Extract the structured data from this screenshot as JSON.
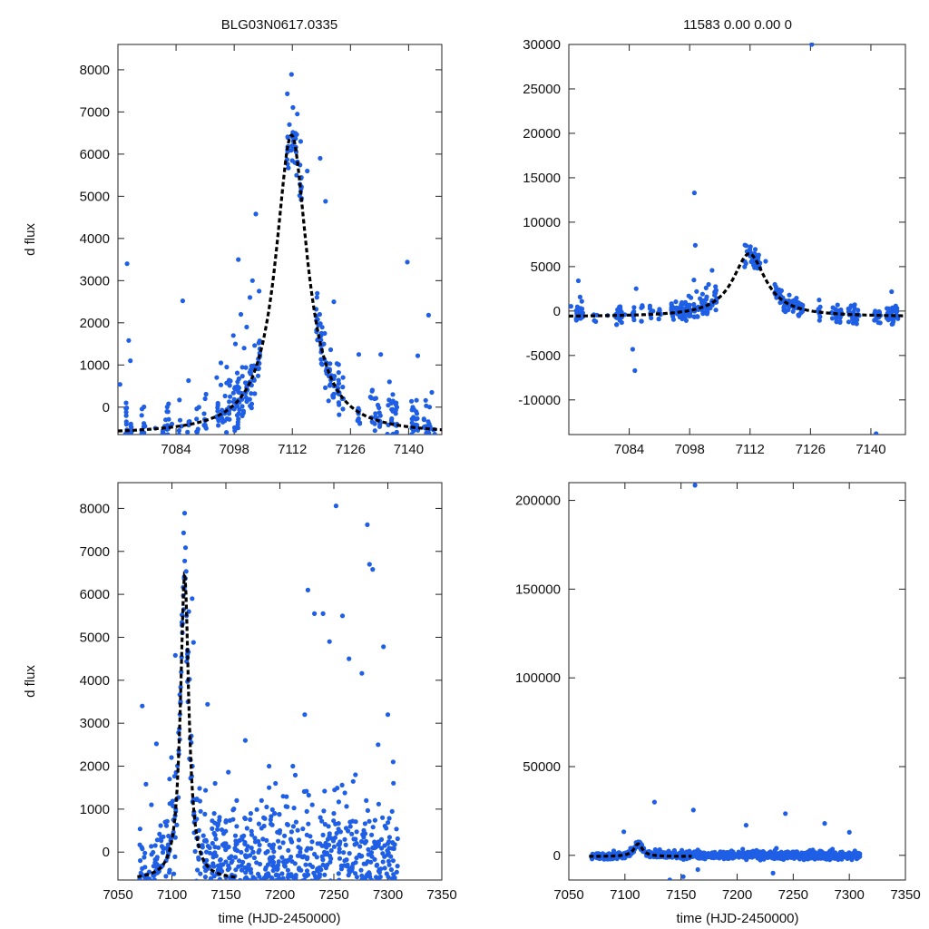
{
  "figure": {
    "title_left": "BLG03N0617.0335",
    "title_right": "11583  0.00  0.00  0",
    "ylabel": "d flux",
    "xlabel": "time (HJD-2450000)",
    "point_color": "#1f5fe6",
    "model_color": "#000000"
  },
  "model": {
    "peak_time": 7111.8,
    "peak_flux": 6450,
    "tau": 4.6,
    "baseline": -650
  },
  "chart_data": [
    {
      "id": "top-left",
      "type": "scatter",
      "title": "BLG03N0617.0335",
      "xlabel": "",
      "ylabel": "d flux",
      "xlim": [
        7070,
        7148
      ],
      "ylim": [
        -650,
        8600
      ],
      "xticks": [
        7084,
        7098,
        7112,
        7126,
        7140
      ],
      "yticks": [
        0,
        1000,
        2000,
        3000,
        4000,
        5000,
        6000,
        7000,
        8000
      ],
      "series": [
        {
          "name": "photometry",
          "x": [
            7070.5,
            7072.2,
            7072.6,
            7073.0,
            7076.5,
            7079.0,
            7081.5,
            7083.0,
            7085.6,
            7087.0,
            7089.5,
            7091.0,
            7093.8,
            7094.8,
            7096.2,
            7097.0,
            7097.8,
            7098.3,
            7099.0,
            7099.6,
            7100.4,
            7101.0,
            7101.8,
            7102.4,
            7103.2,
            7104.0,
            7110.8,
            7111.3,
            7112.0,
            7112.6,
            7113.2,
            7114.0,
            7115.6,
            7118.0,
            7118.6,
            7119.0,
            7119.6,
            7120.2,
            7120.8,
            7121.4,
            7122.0,
            7123.0,
            7124.0,
            7128.0,
            7131.2,
            7131.8,
            7132.6,
            7133.2,
            7135.4,
            7136.2,
            7137.0,
            7141.0,
            7142.0,
            7144.8,
            7145.6
          ],
          "y": [
            540,
            3400,
            1580,
            1100,
            -450,
            -500,
            -300,
            -400,
            2520,
            630,
            0,
            200,
            700,
            1050,
            950,
            250,
            1700,
            1500,
            3500,
            2200,
            1400,
            1900,
            2600,
            3000,
            4580,
            2750,
            7430,
            6700,
            6200,
            5800,
            6950,
            6300,
            5600,
            2700,
            2200,
            1750,
            1500,
            1050,
            900,
            750,
            500,
            330,
            200,
            1250,
            380,
            200,
            50,
            -200,
            600,
            300,
            100,
            0,
            -150,
            2180,
            350
          ]
        },
        {
          "name": "outliers",
          "x": [
            7111.8,
            7118.7,
            7120.0,
            7139.7,
            7133.3,
            7122.0,
            7142.2
          ],
          "y": [
            7890,
            5900,
            4880,
            3440,
            1250,
            2500,
            1220
          ]
        }
      ]
    },
    {
      "id": "top-right",
      "type": "scatter",
      "title": "11583  0.00  0.00  0",
      "xlabel": "",
      "ylabel": "",
      "xlim": [
        7070,
        7148
      ],
      "ylim": [
        -13900,
        30000
      ],
      "xticks": [
        7084,
        7098,
        7112,
        7126,
        7140
      ],
      "yticks": [
        -10000,
        -5000,
        0,
        5000,
        10000,
        15000,
        20000,
        25000,
        30000
      ],
      "series": [
        {
          "name": "photometry",
          "x": [
            7070.5,
            7072.2,
            7072.6,
            7073.0,
            7076.5,
            7079.0,
            7081.5,
            7083.0,
            7085.6,
            7087.0,
            7089.5,
            7091.0,
            7093.8,
            7094.8,
            7096.2,
            7097.0,
            7097.8,
            7098.3,
            7099.0,
            7099.6,
            7100.4,
            7101.0,
            7101.8,
            7102.4,
            7103.2,
            7104.0,
            7110.8,
            7111.3,
            7112.0,
            7112.6,
            7113.2,
            7114.0,
            7115.6,
            7118.0,
            7118.6,
            7119.0,
            7119.6,
            7120.2,
            7120.8,
            7121.4,
            7122.0,
            7123.0,
            7124.0,
            7128.0,
            7131.2,
            7131.8,
            7132.6,
            7133.2,
            7135.4,
            7136.2,
            7137.0,
            7141.0,
            7142.0,
            7144.8,
            7145.6,
            7084.8,
            7085.3,
            7099.1,
            7099.3,
            7126.3,
            7141.2
          ],
          "y": [
            540,
            3400,
            1580,
            1100,
            -450,
            -500,
            -300,
            -400,
            2520,
            630,
            0,
            200,
            700,
            1050,
            950,
            250,
            1700,
            1500,
            3500,
            2200,
            1400,
            1900,
            2600,
            3000,
            4580,
            2750,
            7430,
            6700,
            6200,
            5800,
            6950,
            6300,
            5600,
            2700,
            2200,
            1750,
            1500,
            1050,
            900,
            750,
            500,
            330,
            200,
            1250,
            380,
            200,
            50,
            -200,
            600,
            300,
            100,
            0,
            -150,
            2180,
            350,
            -4300,
            -6700,
            13300,
            7400,
            30000,
            -13800
          ]
        }
      ]
    },
    {
      "id": "bottom-left",
      "type": "scatter",
      "title": "",
      "xlabel": "time (HJD-2450000)",
      "ylabel": "d flux",
      "xlim": [
        7050,
        7350
      ],
      "ylim": [
        -650,
        8600
      ],
      "xticks": [
        7050,
        7100,
        7150,
        7200,
        7250,
        7300,
        7350
      ],
      "yticks": [
        0,
        1000,
        2000,
        3000,
        4000,
        5000,
        6000,
        7000,
        8000
      ],
      "series": [
        {
          "name": "photometry",
          "x": [
            7070.5,
            7072.5,
            7076.0,
            7081.0,
            7085.6,
            7093.8,
            7097.8,
            7099.6,
            7103.2,
            7110.8,
            7111.8,
            7115.6,
            7118.7,
            7120.0,
            7133.0,
            7140.0,
            7150.0,
            7160.0,
            7168.0,
            7183.0,
            7190.0,
            7196.0,
            7203.0,
            7212.0,
            7223.0,
            7226.0,
            7232.0,
            7240.0,
            7246.0,
            7252.0,
            7258.0,
            7264.0,
            7270.0,
            7276.0,
            7281.0,
            7283.0,
            7286.0,
            7291.0,
            7296.0,
            7300.0,
            7305.0
          ],
          "y": [
            540,
            3400,
            1580,
            1100,
            2520,
            700,
            1700,
            2200,
            4580,
            7430,
            7890,
            5600,
            5900,
            4880,
            3440,
            1600,
            700,
            1200,
            2600,
            1200,
            2000,
            1600,
            1300,
            2000,
            3200,
            6100,
            5550,
            5550,
            4900,
            8060,
            5500,
            4500,
            1800,
            4160,
            7620,
            6700,
            6580,
            2500,
            4780,
            3200,
            2100
          ]
        },
        {
          "name": "dense-noise",
          "x": [
            7130,
            7135,
            7140,
            7145,
            7150,
            7155,
            7160,
            7165,
            7170,
            7175,
            7180,
            7185,
            7190,
            7195,
            7200,
            7205,
            7210,
            7215,
            7220,
            7225,
            7230,
            7235,
            7240,
            7245,
            7250,
            7255,
            7260,
            7265,
            7270,
            7275,
            7280,
            7285,
            7290,
            7295,
            7300,
            7305
          ],
          "y": [
            -200,
            100,
            400,
            -300,
            200,
            -100,
            600,
            300,
            -400,
            0,
            250,
            800,
            1500,
            900,
            500,
            -200,
            300,
            700,
            -100,
            400,
            1100,
            200,
            -300,
            600,
            900,
            0,
            -200,
            700,
            300,
            -100,
            1200,
            400,
            -300,
            800,
            200,
            -200
          ]
        }
      ]
    },
    {
      "id": "bottom-right",
      "type": "scatter",
      "title": "",
      "xlabel": "time (HJD-2450000)",
      "ylabel": "",
      "xlim": [
        7050,
        7350
      ],
      "ylim": [
        -13900,
        210000
      ],
      "xticks": [
        7050,
        7100,
        7150,
        7200,
        7250,
        7300,
        7350
      ],
      "yticks": [
        0,
        50000,
        100000,
        150000,
        200000
      ],
      "series": [
        {
          "name": "photometry",
          "x": [
            7070.5,
            7080.0,
            7090.0,
            7099.0,
            7111.8,
            7126.3,
            7140.0,
            7152.0,
            7161.0,
            7165.0,
            7185.0,
            7208.0,
            7232.0,
            7243.0,
            7278.0,
            7300.0,
            7162.5
          ],
          "y": [
            -600,
            -1000,
            2500,
            13300,
            7000,
            30000,
            -13800,
            -12000,
            25500,
            -8000,
            2000,
            17000,
            -10000,
            23500,
            18000,
            13000,
            208500
          ]
        },
        {
          "name": "dense-noise",
          "x": [
            7075,
            7085,
            7095,
            7105,
            7115,
            7125,
            7135,
            7145,
            7155,
            7165,
            7175,
            7185,
            7195,
            7205,
            7215,
            7225,
            7235,
            7245,
            7255,
            7265,
            7275,
            7285,
            7295,
            7305
          ],
          "y": [
            -1500,
            -500,
            1500,
            4000,
            6000,
            500,
            -1000,
            1200,
            -2000,
            3000,
            -800,
            1500,
            2500,
            3500,
            -500,
            1000,
            4000,
            2000,
            -1500,
            2800,
            1500,
            3500,
            500,
            2500
          ]
        }
      ]
    }
  ]
}
